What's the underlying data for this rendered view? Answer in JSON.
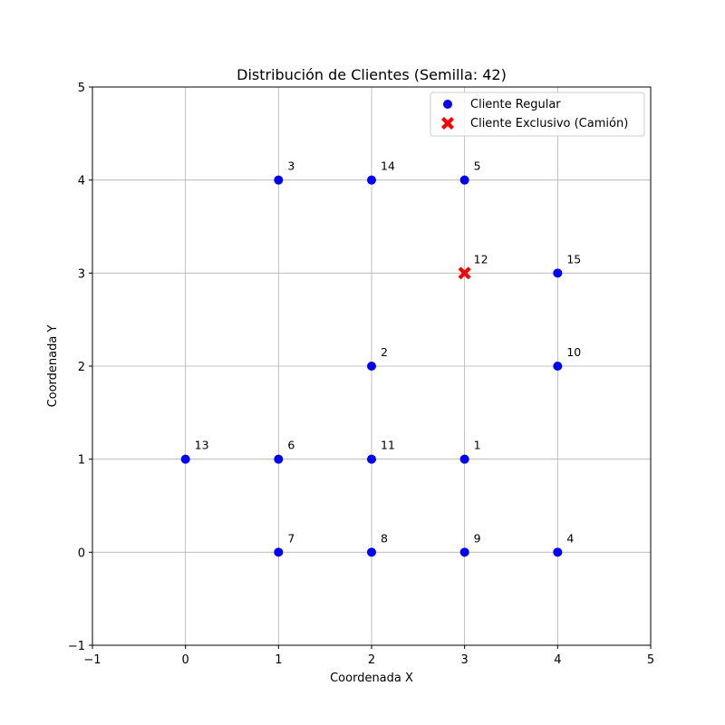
{
  "chart_data": {
    "type": "scatter",
    "title": "Distribución de Clientes (Semilla: 42)",
    "xlabel": "Coordenada X",
    "ylabel": "Coordenada Y",
    "xlim": [
      -1,
      5
    ],
    "ylim": [
      -1,
      5
    ],
    "xticks": [
      -1,
      0,
      1,
      2,
      3,
      4,
      5
    ],
    "yticks": [
      -1,
      0,
      1,
      2,
      3,
      4,
      5
    ],
    "xtick_labels": [
      "−1",
      "0",
      "1",
      "2",
      "3",
      "4",
      "5"
    ],
    "ytick_labels": [
      "−1",
      "0",
      "1",
      "2",
      "3",
      "4",
      "5"
    ],
    "grid": true,
    "legend_position": "top-right",
    "series": [
      {
        "name": "Cliente Regular",
        "marker": "circle",
        "color": "#0000ff",
        "points": [
          {
            "x": 3,
            "y": 1,
            "label": "1"
          },
          {
            "x": 2,
            "y": 2,
            "label": "2"
          },
          {
            "x": 1,
            "y": 4,
            "label": "3"
          },
          {
            "x": 4,
            "y": 0,
            "label": "4"
          },
          {
            "x": 3,
            "y": 4,
            "label": "5"
          },
          {
            "x": 1,
            "y": 1,
            "label": "6"
          },
          {
            "x": 1,
            "y": 0,
            "label": "7"
          },
          {
            "x": 2,
            "y": 0,
            "label": "8"
          },
          {
            "x": 3,
            "y": 0,
            "label": "9"
          },
          {
            "x": 4,
            "y": 2,
            "label": "10"
          },
          {
            "x": 2,
            "y": 1,
            "label": "11"
          },
          {
            "x": 0,
            "y": 1,
            "label": "13"
          },
          {
            "x": 2,
            "y": 4,
            "label": "14"
          },
          {
            "x": 4,
            "y": 3,
            "label": "15"
          }
        ]
      },
      {
        "name": "Cliente Exclusivo (Camión)",
        "marker": "x-filled",
        "color": "#ff0000",
        "points": [
          {
            "x": 3,
            "y": 3,
            "label": "12"
          }
        ]
      }
    ]
  }
}
